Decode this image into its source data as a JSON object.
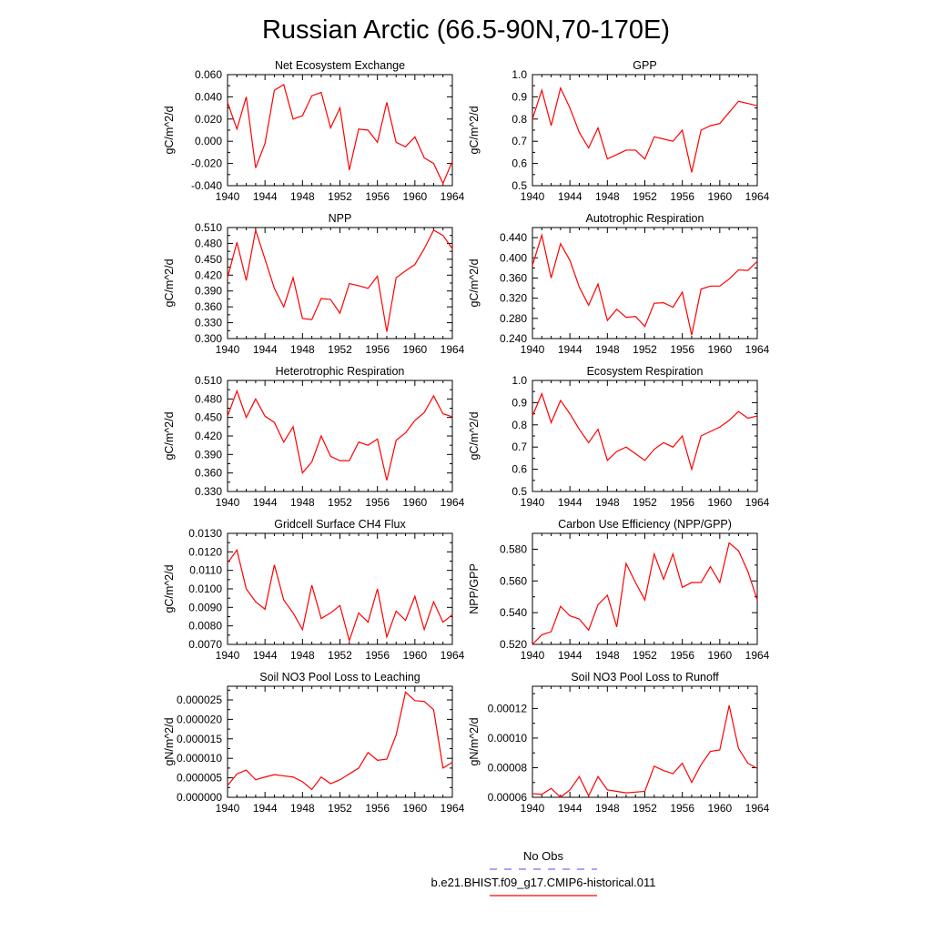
{
  "title": "Russian Arctic (66.5-90N,70-170E)",
  "colors": {
    "model": "#ff0000",
    "obs": "#6f6fff"
  },
  "legend": {
    "obs_label": "No Obs",
    "model_label": "b.e21.BHIST.f09_g17.CMIP6-historical.011"
  },
  "chart_data": [
    {
      "type": "line",
      "title": "Net Ecosystem Exchange",
      "ylabel": "gC/m^2/d",
      "xlim": [
        1940,
        1964
      ],
      "x_ticks": [
        "1940",
        "1944",
        "1948",
        "1952",
        "1956",
        "1960",
        "1964"
      ],
      "ylim": [
        -0.04,
        0.06
      ],
      "y_ticks": [
        "-0.040",
        "-0.020",
        "0.000",
        "0.020",
        "0.040",
        "0.060"
      ],
      "x": [
        1940,
        1941,
        1942,
        1943,
        1944,
        1945,
        1946,
        1947,
        1948,
        1949,
        1950,
        1951,
        1952,
        1953,
        1954,
        1955,
        1956,
        1957,
        1958,
        1959,
        1960,
        1961,
        1962,
        1963,
        1964
      ],
      "values": [
        0.035,
        0.011,
        0.04,
        -0.024,
        -0.002,
        0.046,
        0.051,
        0.02,
        0.023,
        0.041,
        0.044,
        0.012,
        0.03,
        -0.026,
        0.011,
        0.01,
        -0.001,
        0.035,
        -0.001,
        -0.005,
        0.004,
        -0.015,
        -0.02,
        -0.038,
        -0.018
      ]
    },
    {
      "type": "line",
      "title": "GPP",
      "ylabel": "gC/m^2/d",
      "xlim": [
        1940,
        1964
      ],
      "x_ticks": [
        "1940",
        "1944",
        "1948",
        "1952",
        "1956",
        "1960",
        "1964"
      ],
      "ylim": [
        0.5,
        1.0
      ],
      "y_ticks": [
        "0.5",
        "0.6",
        "0.7",
        "0.8",
        "0.9",
        "1.0"
      ],
      "x": [
        1940,
        1941,
        1942,
        1943,
        1944,
        1945,
        1946,
        1947,
        1948,
        1949,
        1950,
        1951,
        1952,
        1953,
        1954,
        1955,
        1956,
        1957,
        1958,
        1959,
        1960,
        1961,
        1962,
        1963,
        1964
      ],
      "values": [
        0.8,
        0.93,
        0.77,
        0.94,
        0.85,
        0.74,
        0.67,
        0.76,
        0.62,
        0.64,
        0.66,
        0.66,
        0.62,
        0.72,
        0.71,
        0.7,
        0.75,
        0.56,
        0.75,
        0.77,
        0.78,
        0.83,
        0.88,
        0.87,
        0.86
      ]
    },
    {
      "type": "line",
      "title": "NPP",
      "ylabel": "gC/m^2/d",
      "xlim": [
        1940,
        1964
      ],
      "x_ticks": [
        "1940",
        "1944",
        "1948",
        "1952",
        "1956",
        "1960",
        "1964"
      ],
      "ylim": [
        0.3,
        0.51
      ],
      "y_ticks": [
        "0.300",
        "0.330",
        "0.360",
        "0.390",
        "0.420",
        "0.450",
        "0.480",
        "0.510"
      ],
      "x": [
        1940,
        1941,
        1942,
        1943,
        1944,
        1945,
        1946,
        1947,
        1948,
        1949,
        1950,
        1951,
        1952,
        1953,
        1954,
        1955,
        1956,
        1957,
        1958,
        1959,
        1960,
        1961,
        1962,
        1963,
        1964
      ],
      "values": [
        0.415,
        0.482,
        0.41,
        0.505,
        0.45,
        0.395,
        0.36,
        0.415,
        0.338,
        0.336,
        0.376,
        0.374,
        0.348,
        0.404,
        0.4,
        0.395,
        0.418,
        0.313,
        0.415,
        0.428,
        0.44,
        0.47,
        0.505,
        0.495,
        0.47
      ]
    },
    {
      "type": "line",
      "title": "Autotrophic Respiration",
      "ylabel": "gC/m^2/d",
      "xlim": [
        1940,
        1964
      ],
      "x_ticks": [
        "1940",
        "1944",
        "1948",
        "1952",
        "1956",
        "1960",
        "1964"
      ],
      "ylim": [
        0.24,
        0.46
      ],
      "y_ticks": [
        "0.240",
        "0.280",
        "0.320",
        "0.360",
        "0.400",
        "0.440"
      ],
      "x": [
        1940,
        1941,
        1942,
        1943,
        1944,
        1945,
        1946,
        1947,
        1948,
        1949,
        1950,
        1951,
        1952,
        1953,
        1954,
        1955,
        1956,
        1957,
        1958,
        1959,
        1960,
        1961,
        1962,
        1963,
        1964
      ],
      "values": [
        0.385,
        0.445,
        0.36,
        0.428,
        0.395,
        0.342,
        0.306,
        0.348,
        0.276,
        0.298,
        0.282,
        0.284,
        0.264,
        0.31,
        0.311,
        0.302,
        0.332,
        0.247,
        0.338,
        0.344,
        0.344,
        0.358,
        0.376,
        0.375,
        0.393
      ]
    },
    {
      "type": "line",
      "title": "Heterotrophic Respiration",
      "ylabel": "gC/m^2/d",
      "xlim": [
        1940,
        1964
      ],
      "x_ticks": [
        "1940",
        "1944",
        "1948",
        "1952",
        "1956",
        "1960",
        "1964"
      ],
      "ylim": [
        0.33,
        0.51
      ],
      "y_ticks": [
        "0.330",
        "0.360",
        "0.390",
        "0.420",
        "0.450",
        "0.480",
        "0.510"
      ],
      "x": [
        1940,
        1941,
        1942,
        1943,
        1944,
        1945,
        1946,
        1947,
        1948,
        1949,
        1950,
        1951,
        1952,
        1953,
        1954,
        1955,
        1956,
        1957,
        1958,
        1959,
        1960,
        1961,
        1962,
        1963,
        1964
      ],
      "values": [
        0.452,
        0.493,
        0.45,
        0.48,
        0.452,
        0.442,
        0.41,
        0.435,
        0.36,
        0.378,
        0.42,
        0.387,
        0.38,
        0.38,
        0.41,
        0.405,
        0.415,
        0.348,
        0.413,
        0.425,
        0.445,
        0.458,
        0.485,
        0.456,
        0.451
      ]
    },
    {
      "type": "line",
      "title": "Ecosystem Respiration",
      "ylabel": "gC/m^2/d",
      "xlim": [
        1940,
        1964
      ],
      "x_ticks": [
        "1940",
        "1944",
        "1948",
        "1952",
        "1956",
        "1960",
        "1964"
      ],
      "ylim": [
        0.5,
        1.0
      ],
      "y_ticks": [
        "0.5",
        "0.6",
        "0.7",
        "0.8",
        "0.9",
        "1.0"
      ],
      "x": [
        1940,
        1941,
        1942,
        1943,
        1944,
        1945,
        1946,
        1947,
        1948,
        1949,
        1950,
        1951,
        1952,
        1953,
        1954,
        1955,
        1956,
        1957,
        1958,
        1959,
        1960,
        1961,
        1962,
        1963,
        1964
      ],
      "values": [
        0.84,
        0.94,
        0.81,
        0.91,
        0.85,
        0.78,
        0.72,
        0.78,
        0.64,
        0.68,
        0.7,
        0.67,
        0.64,
        0.69,
        0.72,
        0.7,
        0.75,
        0.6,
        0.75,
        0.77,
        0.79,
        0.82,
        0.86,
        0.83,
        0.84
      ]
    },
    {
      "type": "line",
      "title": "Gridcell Surface CH4 Flux",
      "ylabel": "gC/m^2/d",
      "xlim": [
        1940,
        1964
      ],
      "x_ticks": [
        "1940",
        "1944",
        "1948",
        "1952",
        "1956",
        "1960",
        "1964"
      ],
      "ylim": [
        0.007,
        0.013
      ],
      "y_ticks": [
        "0.0070",
        "0.0080",
        "0.0090",
        "0.0100",
        "0.0110",
        "0.0120",
        "0.0130"
      ],
      "x": [
        1940,
        1941,
        1942,
        1943,
        1944,
        1945,
        1946,
        1947,
        1948,
        1949,
        1950,
        1951,
        1952,
        1953,
        1954,
        1955,
        1956,
        1957,
        1958,
        1959,
        1960,
        1961,
        1962,
        1963,
        1964
      ],
      "values": [
        0.0114,
        0.0121,
        0.01,
        0.0093,
        0.0089,
        0.0113,
        0.0094,
        0.0087,
        0.0078,
        0.0102,
        0.0084,
        0.0087,
        0.0091,
        0.0072,
        0.0087,
        0.0082,
        0.01,
        0.0074,
        0.0088,
        0.0083,
        0.0096,
        0.0078,
        0.0093,
        0.0082,
        0.0086
      ]
    },
    {
      "type": "line",
      "title": "Carbon Use Efficiency (NPP/GPP)",
      "ylabel": "NPP/GPP",
      "xlim": [
        1940,
        1964
      ],
      "x_ticks": [
        "1940",
        "1944",
        "1948",
        "1952",
        "1956",
        "1960",
        "1964"
      ],
      "ylim": [
        0.52,
        0.59
      ],
      "y_ticks": [
        "0.520",
        "0.540",
        "0.560",
        "0.580"
      ],
      "x": [
        1940,
        1941,
        1942,
        1943,
        1944,
        1945,
        1946,
        1947,
        1948,
        1949,
        1950,
        1951,
        1952,
        1953,
        1954,
        1955,
        1956,
        1957,
        1958,
        1959,
        1960,
        1961,
        1962,
        1963,
        1964
      ],
      "values": [
        0.52,
        0.526,
        0.528,
        0.544,
        0.538,
        0.536,
        0.529,
        0.545,
        0.551,
        0.531,
        0.571,
        0.559,
        0.548,
        0.577,
        0.561,
        0.577,
        0.556,
        0.559,
        0.559,
        0.569,
        0.559,
        0.584,
        0.579,
        0.566,
        0.548
      ]
    },
    {
      "type": "line",
      "title": "Soil NO3 Pool Loss to Leaching",
      "ylabel": "gN/m^2/d",
      "xlim": [
        1940,
        1964
      ],
      "x_ticks": [
        "1940",
        "1944",
        "1948",
        "1952",
        "1956",
        "1960",
        "1964"
      ],
      "ylim": [
        0.0,
        2.85e-05
      ],
      "y_ticks": [
        "0.000000",
        "0.000005",
        "0.000010",
        "0.000015",
        "0.000020",
        "0.000025"
      ],
      "x": [
        1940,
        1941,
        1942,
        1943,
        1944,
        1945,
        1946,
        1947,
        1948,
        1949,
        1950,
        1951,
        1952,
        1953,
        1954,
        1955,
        1956,
        1957,
        1958,
        1959,
        1960,
        1961,
        1962,
        1963,
        1964
      ],
      "values": [
        3e-06,
        6e-06,
        7e-06,
        4.5e-06,
        5.2e-06,
        5.8e-06,
        5.5e-06,
        5.2e-06,
        4e-06,
        2e-06,
        5.2e-06,
        3.5e-06,
        4.5e-06,
        6e-06,
        7.5e-06,
        1.15e-05,
        9.5e-06,
        9.8e-06,
        1.6e-05,
        2.7e-05,
        2.48e-05,
        2.46e-05,
        2.25e-05,
        7.5e-06,
        9e-06
      ]
    },
    {
      "type": "line",
      "title": "Soil NO3 Pool Loss to Runoff",
      "ylabel": "gN/m^2/d",
      "xlim": [
        1940,
        1964
      ],
      "x_ticks": [
        "1940",
        "1944",
        "1948",
        "1952",
        "1956",
        "1960",
        "1964"
      ],
      "ylim": [
        6e-05,
        0.000135
      ],
      "y_ticks": [
        "0.00006",
        "0.00008",
        "0.00010",
        "0.00012"
      ],
      "x": [
        1940,
        1941,
        1942,
        1943,
        1944,
        1945,
        1946,
        1947,
        1948,
        1949,
        1950,
        1951,
        1952,
        1953,
        1954,
        1955,
        1956,
        1957,
        1958,
        1959,
        1960,
        1961,
        1962,
        1963,
        1964
      ],
      "values": [
        6.25e-05,
        6.2e-05,
        6.6e-05,
        6e-05,
        6.5e-05,
        7.4e-05,
        6.1e-05,
        7.4e-05,
        6.5e-05,
        6.4e-05,
        6.3e-05,
        6.35e-05,
        6.4e-05,
        8.1e-05,
        7.8e-05,
        7.6e-05,
        8.3e-05,
        7e-05,
        8.2e-05,
        9.1e-05,
        9.2e-05,
        0.000122,
        9.3e-05,
        8.3e-05,
        7.95e-05
      ]
    }
  ]
}
